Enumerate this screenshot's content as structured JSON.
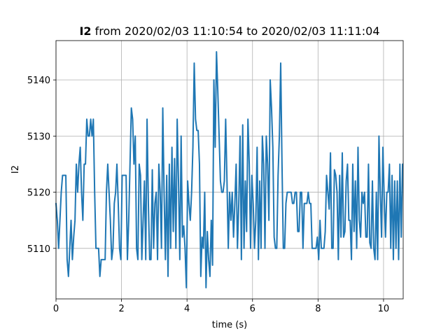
{
  "chart_data": {
    "type": "line",
    "title_bold": "I2",
    "title_rest": " from 2020/02/03 11:10:54 to 2020/02/03 11:11:04",
    "xlabel": "time (s)",
    "ylabel": "I2",
    "xlim": [
      0,
      10.6
    ],
    "ylim": [
      5101,
      5147
    ],
    "xticks": [
      0,
      2,
      4,
      6,
      8,
      10
    ],
    "yticks": [
      5110,
      5120,
      5130,
      5140
    ],
    "grid": true,
    "series_color": "#1f77b4",
    "series": [
      {
        "values": [
          [
            0.0,
            5118
          ],
          [
            0.04,
            5115
          ],
          [
            0.08,
            5110
          ],
          [
            0.12,
            5115
          ],
          [
            0.16,
            5120
          ],
          [
            0.2,
            5123
          ],
          [
            0.26,
            5123
          ],
          [
            0.3,
            5123
          ],
          [
            0.34,
            5108
          ],
          [
            0.38,
            5105
          ],
          [
            0.42,
            5110
          ],
          [
            0.46,
            5115
          ],
          [
            0.5,
            5108
          ],
          [
            0.54,
            5112
          ],
          [
            0.58,
            5115
          ],
          [
            0.62,
            5125
          ],
          [
            0.66,
            5120
          ],
          [
            0.7,
            5125
          ],
          [
            0.74,
            5128
          ],
          [
            0.78,
            5120
          ],
          [
            0.82,
            5115
          ],
          [
            0.86,
            5125
          ],
          [
            0.9,
            5125
          ],
          [
            0.94,
            5133
          ],
          [
            0.98,
            5130
          ],
          [
            1.02,
            5130
          ],
          [
            1.06,
            5133
          ],
          [
            1.1,
            5130
          ],
          [
            1.14,
            5133
          ],
          [
            1.18,
            5120
          ],
          [
            1.22,
            5110
          ],
          [
            1.26,
            5110
          ],
          [
            1.3,
            5110
          ],
          [
            1.34,
            5105
          ],
          [
            1.38,
            5108
          ],
          [
            1.46,
            5108
          ],
          [
            1.5,
            5108
          ],
          [
            1.54,
            5120
          ],
          [
            1.58,
            5125
          ],
          [
            1.62,
            5120
          ],
          [
            1.66,
            5115
          ],
          [
            1.7,
            5108
          ],
          [
            1.74,
            5110
          ],
          [
            1.78,
            5118
          ],
          [
            1.82,
            5120
          ],
          [
            1.86,
            5125
          ],
          [
            1.9,
            5118
          ],
          [
            1.94,
            5110
          ],
          [
            1.98,
            5108
          ],
          [
            2.02,
            5123
          ],
          [
            2.1,
            5123
          ],
          [
            2.14,
            5123
          ],
          [
            2.18,
            5108
          ],
          [
            2.22,
            5115
          ],
          [
            2.26,
            5125
          ],
          [
            2.3,
            5135
          ],
          [
            2.34,
            5133
          ],
          [
            2.38,
            5125
          ],
          [
            2.42,
            5130
          ],
          [
            2.46,
            5110
          ],
          [
            2.5,
            5108
          ],
          [
            2.54,
            5125
          ],
          [
            2.58,
            5123
          ],
          [
            2.62,
            5108
          ],
          [
            2.66,
            5115
          ],
          [
            2.7,
            5122
          ],
          [
            2.74,
            5108
          ],
          [
            2.78,
            5133
          ],
          [
            2.82,
            5118
          ],
          [
            2.86,
            5108
          ],
          [
            2.9,
            5108
          ],
          [
            2.94,
            5124
          ],
          [
            2.98,
            5110
          ],
          [
            3.02,
            5118
          ],
          [
            3.06,
            5120
          ],
          [
            3.1,
            5108
          ],
          [
            3.14,
            5125
          ],
          [
            3.18,
            5120
          ],
          [
            3.22,
            5110
          ],
          [
            3.26,
            5135
          ],
          [
            3.3,
            5120
          ],
          [
            3.34,
            5108
          ],
          [
            3.38,
            5123
          ],
          [
            3.42,
            5105
          ],
          [
            3.46,
            5125
          ],
          [
            3.5,
            5110
          ],
          [
            3.54,
            5128
          ],
          [
            3.58,
            5113
          ],
          [
            3.62,
            5126
          ],
          [
            3.66,
            5110
          ],
          [
            3.7,
            5133
          ],
          [
            3.74,
            5122
          ],
          [
            3.78,
            5108
          ],
          [
            3.82,
            5130
          ],
          [
            3.86,
            5112
          ],
          [
            3.9,
            5114
          ],
          [
            3.94,
            5110
          ],
          [
            3.98,
            5103
          ],
          [
            4.02,
            5122
          ],
          [
            4.06,
            5118
          ],
          [
            4.1,
            5115
          ],
          [
            4.14,
            5120
          ],
          [
            4.18,
            5128
          ],
          [
            4.22,
            5143
          ],
          [
            4.26,
            5133
          ],
          [
            4.3,
            5131
          ],
          [
            4.34,
            5131
          ],
          [
            4.38,
            5125
          ],
          [
            4.42,
            5105
          ],
          [
            4.46,
            5112
          ],
          [
            4.5,
            5110
          ],
          [
            4.54,
            5120
          ],
          [
            4.58,
            5103
          ],
          [
            4.62,
            5113
          ],
          [
            4.66,
            5108
          ],
          [
            4.7,
            5105
          ],
          [
            4.74,
            5115
          ],
          [
            4.78,
            5107
          ],
          [
            4.82,
            5140
          ],
          [
            4.86,
            5128
          ],
          [
            4.9,
            5145
          ],
          [
            4.94,
            5138
          ],
          [
            4.98,
            5130
          ],
          [
            5.02,
            5122
          ],
          [
            5.06,
            5120
          ],
          [
            5.1,
            5120
          ],
          [
            5.14,
            5122
          ],
          [
            5.18,
            5133
          ],
          [
            5.22,
            5122
          ],
          [
            5.26,
            5110
          ],
          [
            5.3,
            5120
          ],
          [
            5.34,
            5115
          ],
          [
            5.38,
            5120
          ],
          [
            5.42,
            5112
          ],
          [
            5.46,
            5118
          ],
          [
            5.5,
            5125
          ],
          [
            5.54,
            5110
          ],
          [
            5.58,
            5118
          ],
          [
            5.62,
            5130
          ],
          [
            5.66,
            5108
          ],
          [
            5.7,
            5132
          ],
          [
            5.74,
            5110
          ],
          [
            5.78,
            5122
          ],
          [
            5.82,
            5113
          ],
          [
            5.86,
            5133
          ],
          [
            5.9,
            5125
          ],
          [
            5.94,
            5110
          ],
          [
            5.98,
            5123
          ],
          [
            6.02,
            5118
          ],
          [
            6.06,
            5110
          ],
          [
            6.1,
            5115
          ],
          [
            6.14,
            5128
          ],
          [
            6.18,
            5108
          ],
          [
            6.22,
            5122
          ],
          [
            6.26,
            5110
          ],
          [
            6.3,
            5130
          ],
          [
            6.34,
            5125
          ],
          [
            6.38,
            5110
          ],
          [
            6.42,
            5130
          ],
          [
            6.46,
            5125
          ],
          [
            6.5,
            5115
          ],
          [
            6.54,
            5140
          ],
          [
            6.58,
            5135
          ],
          [
            6.62,
            5128
          ],
          [
            6.66,
            5112
          ],
          [
            6.7,
            5110
          ],
          [
            6.74,
            5110
          ],
          [
            6.78,
            5123
          ],
          [
            6.82,
            5130
          ],
          [
            6.86,
            5143
          ],
          [
            6.9,
            5125
          ],
          [
            6.94,
            5110
          ],
          [
            6.98,
            5110
          ],
          [
            7.02,
            5118
          ],
          [
            7.06,
            5120
          ],
          [
            7.1,
            5120
          ],
          [
            7.14,
            5120
          ],
          [
            7.18,
            5120
          ],
          [
            7.22,
            5118
          ],
          [
            7.26,
            5118
          ],
          [
            7.3,
            5120
          ],
          [
            7.34,
            5120
          ],
          [
            7.38,
            5113
          ],
          [
            7.42,
            5113
          ],
          [
            7.46,
            5120
          ],
          [
            7.5,
            5120
          ],
          [
            7.54,
            5110
          ],
          [
            7.58,
            5118
          ],
          [
            7.62,
            5118
          ],
          [
            7.66,
            5118
          ],
          [
            7.7,
            5120
          ],
          [
            7.74,
            5118
          ],
          [
            7.78,
            5118
          ],
          [
            7.82,
            5110
          ],
          [
            7.86,
            5110
          ],
          [
            7.9,
            5110
          ],
          [
            7.94,
            5110
          ],
          [
            7.98,
            5112
          ],
          [
            8.02,
            5108
          ],
          [
            8.06,
            5115
          ],
          [
            8.1,
            5110
          ],
          [
            8.14,
            5110
          ],
          [
            8.18,
            5110
          ],
          [
            8.22,
            5113
          ],
          [
            8.26,
            5123
          ],
          [
            8.3,
            5120
          ],
          [
            8.34,
            5117
          ],
          [
            8.38,
            5127
          ],
          [
            8.42,
            5110
          ],
          [
            8.46,
            5110
          ],
          [
            8.5,
            5124
          ],
          [
            8.54,
            5123
          ],
          [
            8.58,
            5120
          ],
          [
            8.62,
            5108
          ],
          [
            8.66,
            5123
          ],
          [
            8.7,
            5112
          ],
          [
            8.74,
            5127
          ],
          [
            8.78,
            5112
          ],
          [
            8.82,
            5113
          ],
          [
            8.86,
            5122
          ],
          [
            8.9,
            5125
          ],
          [
            8.94,
            5115
          ],
          [
            8.98,
            5115
          ],
          [
            9.02,
            5108
          ],
          [
            9.06,
            5125
          ],
          [
            9.1,
            5113
          ],
          [
            9.14,
            5122
          ],
          [
            9.18,
            5110
          ],
          [
            9.22,
            5128
          ],
          [
            9.26,
            5115
          ],
          [
            9.3,
            5112
          ],
          [
            9.34,
            5120
          ],
          [
            9.38,
            5118
          ],
          [
            9.42,
            5120
          ],
          [
            9.46,
            5112
          ],
          [
            9.5,
            5112
          ],
          [
            9.54,
            5125
          ],
          [
            9.58,
            5111
          ],
          [
            9.62,
            5110
          ],
          [
            9.66,
            5122
          ],
          [
            9.7,
            5110
          ],
          [
            9.74,
            5108
          ],
          [
            9.78,
            5120
          ],
          [
            9.82,
            5108
          ],
          [
            9.86,
            5130
          ],
          [
            9.9,
            5120
          ],
          [
            9.94,
            5112
          ],
          [
            9.98,
            5128
          ],
          [
            10.02,
            5119
          ],
          [
            10.06,
            5112
          ],
          [
            10.1,
            5120
          ],
          [
            10.14,
            5120
          ],
          [
            10.18,
            5125
          ],
          [
            10.22,
            5110
          ],
          [
            10.26,
            5123
          ],
          [
            10.3,
            5108
          ],
          [
            10.34,
            5122
          ],
          [
            10.38,
            5110
          ],
          [
            10.42,
            5122
          ],
          [
            10.46,
            5108
          ],
          [
            10.5,
            5125
          ],
          [
            10.54,
            5112
          ],
          [
            10.58,
            5125
          ]
        ]
      }
    ]
  }
}
